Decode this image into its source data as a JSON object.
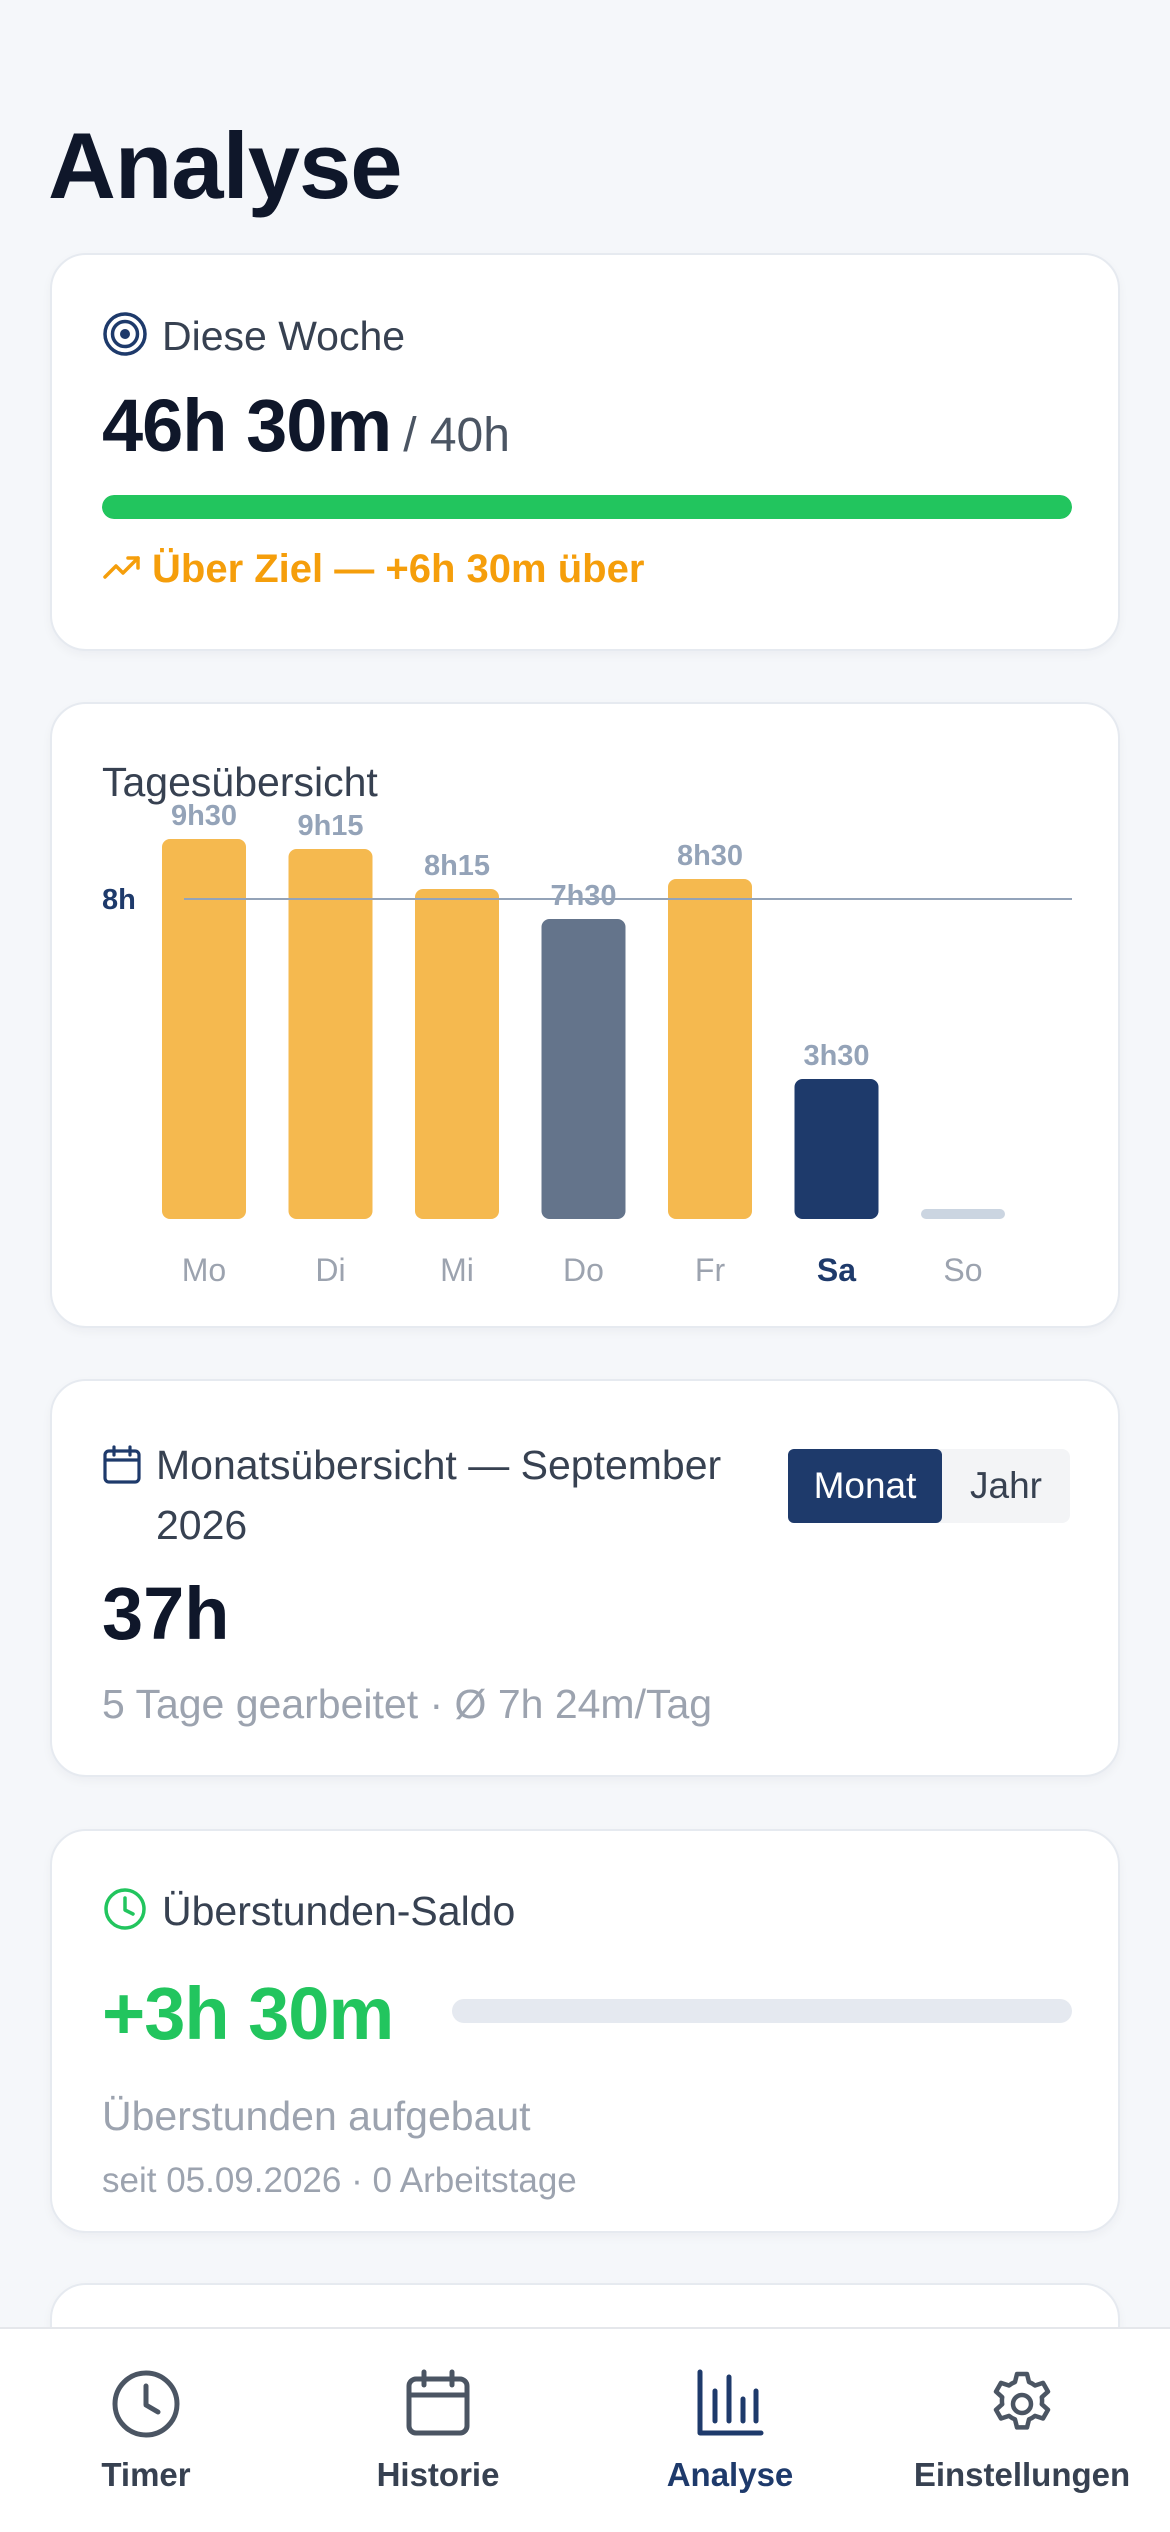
{
  "page": {
    "title": "Analyse"
  },
  "week": {
    "label": "Diese Woche",
    "total": "46h 30m",
    "goal": "/ 40h",
    "progress_fraction": 1.0,
    "status": "Über Ziel — +6h 30m über",
    "icon": "target-icon",
    "status_icon": "trending-up-icon"
  },
  "chart_data": {
    "type": "bar",
    "title": "Tagesübersicht",
    "categories": [
      "Mo",
      "Di",
      "Mi",
      "Do",
      "Fr",
      "Sa",
      "So"
    ],
    "values": [
      9.5,
      9.25,
      8.25,
      7.5,
      8.5,
      3.5,
      0
    ],
    "value_labels": [
      "9h30",
      "9h15",
      "8h15",
      "7h30",
      "8h30",
      "3h30",
      ""
    ],
    "reference_line": {
      "value": 8,
      "label": "8h"
    },
    "highlighted_category": "Sa",
    "ylim": [
      0,
      9.5
    ],
    "colors": {
      "over_target": "#f5b94f",
      "under_target": "#64748b",
      "today": "#1e3a6b",
      "empty": "#cbd5e1",
      "reference": "#94a3b8"
    }
  },
  "month": {
    "label": "Monatsübersicht — September 2026",
    "total": "37h",
    "summary": "5 Tage gearbeitet · Ø 7h 24m/Tag",
    "toggle": {
      "active": "Monat",
      "inactive": "Jahr"
    },
    "icon": "calendar-icon"
  },
  "overtime": {
    "label": "Überstunden-Saldo",
    "value": "+3h 30m",
    "status": "Überstunden aufgebaut",
    "since": "seit 05.09.2026 · 0 Arbeitstage",
    "icon": "clock-icon"
  },
  "nav": {
    "items": [
      {
        "label": "Timer",
        "icon": "clock-icon"
      },
      {
        "label": "Historie",
        "icon": "calendar-icon"
      },
      {
        "label": "Analyse",
        "icon": "bar-chart-icon"
      },
      {
        "label": "Einstellungen",
        "icon": "gear-icon"
      }
    ],
    "active": "Analyse"
  },
  "colors": {
    "primary": "#1e3a6b",
    "success": "#22c55e",
    "warning": "#f59e0b",
    "muted": "#9ca3af"
  }
}
